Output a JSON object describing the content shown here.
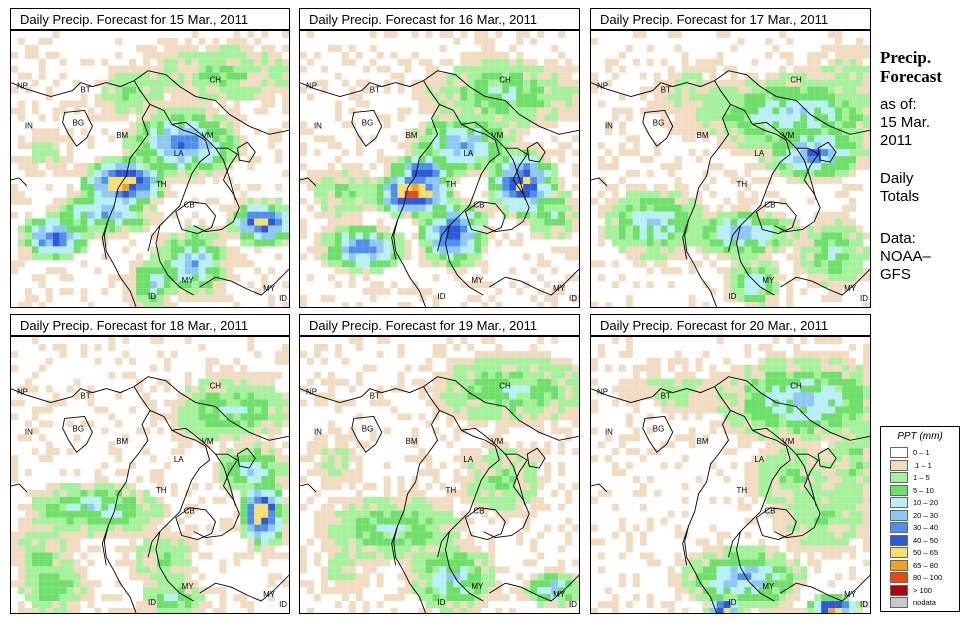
{
  "panels": [
    {
      "title": "Daily Precip. Forecast for  15 Mar., 2011"
    },
    {
      "title": "Daily Precip. Forecast for  16 Mar., 2011"
    },
    {
      "title": "Daily Precip. Forecast for  17 Mar., 2011"
    },
    {
      "title": "Daily Precip. Forecast for  18 Mar., 2011"
    },
    {
      "title": "Daily Precip. Forecast for  19 Mar., 2011"
    },
    {
      "title": "Daily Precip. Forecast for  20 Mar., 2011"
    }
  ],
  "map_labels": {
    "np": "NP",
    "bt": "BT",
    "bg": "BG",
    "in": "IN",
    "bm": "BM",
    "ch": "CH",
    "vm": "VM",
    "la": "LA",
    "th": "TH",
    "cb": "CB",
    "my": "MY",
    "id": "ID"
  },
  "sidebar": {
    "title_line1": "Precip.",
    "title_line2": "Forecast",
    "asof_label": "as of:",
    "date_line1": "15 Mar.",
    "date_line2": "2011",
    "totals_line1": "Daily",
    "totals_line2": "Totals",
    "data_line1": "Data:",
    "data_line2": "NOAA–",
    "data_line3": "GFS"
  },
  "legend": {
    "title": "PPT (mm)",
    "items": [
      {
        "label": "0 – 1",
        "color": "#ffffff"
      },
      {
        "label": ".1 – 1",
        "color": "#f2dcc1"
      },
      {
        "label": "1 – 5",
        "color": "#a6f29c"
      },
      {
        "label": "5 – 10",
        "color": "#6ee06a"
      },
      {
        "label": "10 – 20",
        "color": "#b9f0f8"
      },
      {
        "label": "20 – 30",
        "color": "#8fc8f5"
      },
      {
        "label": "30 – 40",
        "color": "#4f8fec"
      },
      {
        "label": "40 – 50",
        "color": "#2d58d8"
      },
      {
        "label": "50 – 65",
        "color": "#f7e06a"
      },
      {
        "label": "65 – 80",
        "color": "#f5a020"
      },
      {
        "label": "80 – 100",
        "color": "#e84a10"
      },
      {
        "label": "> 100",
        "color": "#b40000"
      },
      {
        "label": "nodata",
        "color": "#c8c8c8"
      }
    ]
  }
}
